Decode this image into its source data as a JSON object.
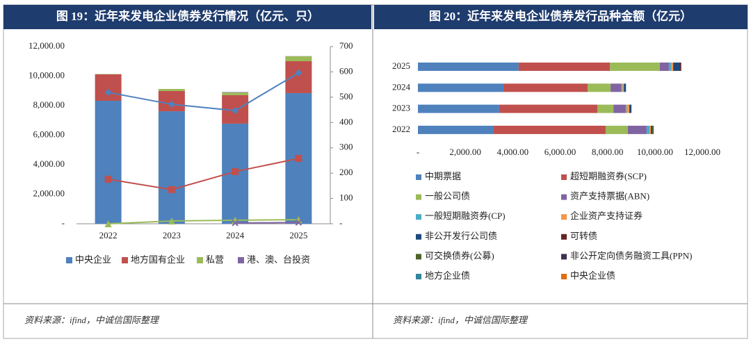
{
  "chart_data": [
    {
      "type": "bar-line",
      "title": "图 19：近年来发电企业债券发行情况（亿元、只）",
      "source": "资料来源：ifind，中诚信国际整理",
      "categories": [
        "2022",
        "2023",
        "2024",
        "2025"
      ],
      "ylim": [
        0,
        12000
      ],
      "yticks": [
        {
          "value": 0,
          "label": "-"
        },
        {
          "value": 2000,
          "label": "2,000.00"
        },
        {
          "value": 4000,
          "label": "4,000.00"
        },
        {
          "value": 6000,
          "label": "6,000.00"
        },
        {
          "value": 8000,
          "label": "8,000.00"
        },
        {
          "value": 10000,
          "label": "10,000.00"
        },
        {
          "value": 12000,
          "label": "12,000.00"
        }
      ],
      "y2lim": [
        0,
        700
      ],
      "y2ticks": [
        {
          "value": 0,
          "label": "-"
        },
        100,
        200,
        300,
        400,
        500,
        600,
        700
      ],
      "series": [
        {
          "name": "中央企业",
          "color": "#4f81bd",
          "values": [
            8330,
            7620,
            6780,
            8850
          ],
          "y2_values": [
            519,
            472,
            447,
            596
          ],
          "marker": "diamond"
        },
        {
          "name": "地方国有企业",
          "color": "#c0504d",
          "values": [
            1790,
            1370,
            1930,
            2160
          ],
          "y2_values": [
            176,
            135,
            206,
            258
          ],
          "marker": "square"
        },
        {
          "name": "私营",
          "color": "#9bbb59",
          "values": [
            20,
            140,
            180,
            330
          ],
          "y2_values": [
            0,
            11,
            14,
            16
          ],
          "marker": "triangle"
        },
        {
          "name": "港、澳、台投资",
          "color": "#8064a2",
          "values": [
            0,
            0,
            30,
            10
          ],
          "y2_values": [
            null,
            null,
            3,
            5
          ],
          "marker": "x"
        }
      ]
    },
    {
      "type": "hbar-stacked",
      "title": "图 20：近年来发电企业债券发行品种金额（亿元）",
      "source": "资料来源：ifind，中诚信国际整理",
      "categories": [
        "2025",
        "2024",
        "2023",
        "2022"
      ],
      "xlim": [
        0,
        12000
      ],
      "xticks": [
        {
          "value": 0,
          "label": "-"
        },
        {
          "value": 2000,
          "label": "2,000.00"
        },
        {
          "value": 4000,
          "label": "4,000.00"
        },
        {
          "value": 6000,
          "label": "6,000.00"
        },
        {
          "value": 8000,
          "label": "8,000.00"
        },
        {
          "value": 10000,
          "label": "10,000.00"
        },
        {
          "value": 12000,
          "label": "12,000.00"
        }
      ],
      "series": [
        {
          "name": "中期票据",
          "color": "#4f81bd",
          "values": [
            4250,
            3610,
            3430,
            3200
          ]
        },
        {
          "name": "超短期融资券(SCP)",
          "color": "#c0504d",
          "values": [
            3850,
            3550,
            4140,
            4720
          ]
        },
        {
          "name": "一般公司债",
          "color": "#9bbb59",
          "values": [
            2110,
            970,
            680,
            940
          ]
        },
        {
          "name": "资产支持票据(ABN)",
          "color": "#8064a2",
          "values": [
            380,
            440,
            520,
            790
          ]
        },
        {
          "name": "一般短期融资券(CP)",
          "color": "#4bacc6",
          "values": [
            90,
            60,
            30,
            120
          ]
        },
        {
          "name": "企业资产支持证券",
          "color": "#f79646",
          "values": [
            90,
            60,
            120,
            60
          ]
        },
        {
          "name": "非公开发行公司债",
          "color": "#1f497d",
          "values": [
            260,
            90,
            90,
            60
          ]
        },
        {
          "name": "可转债",
          "color": "#632523",
          "values": [
            60,
            0,
            0,
            0
          ]
        },
        {
          "name": "可交换债券(公募)",
          "color": "#4f6228",
          "values": [
            0,
            0,
            0,
            60
          ]
        },
        {
          "name": "非公开定向债务融资工具(PPN)",
          "color": "#3f3151",
          "values": [
            20,
            0,
            0,
            0
          ]
        },
        {
          "name": "地方企业债",
          "color": "#31859c",
          "values": [
            0,
            0,
            0,
            0
          ]
        },
        {
          "name": "中央企业债",
          "color": "#e46c0a",
          "values": [
            0,
            0,
            0,
            0
          ]
        }
      ]
    }
  ]
}
